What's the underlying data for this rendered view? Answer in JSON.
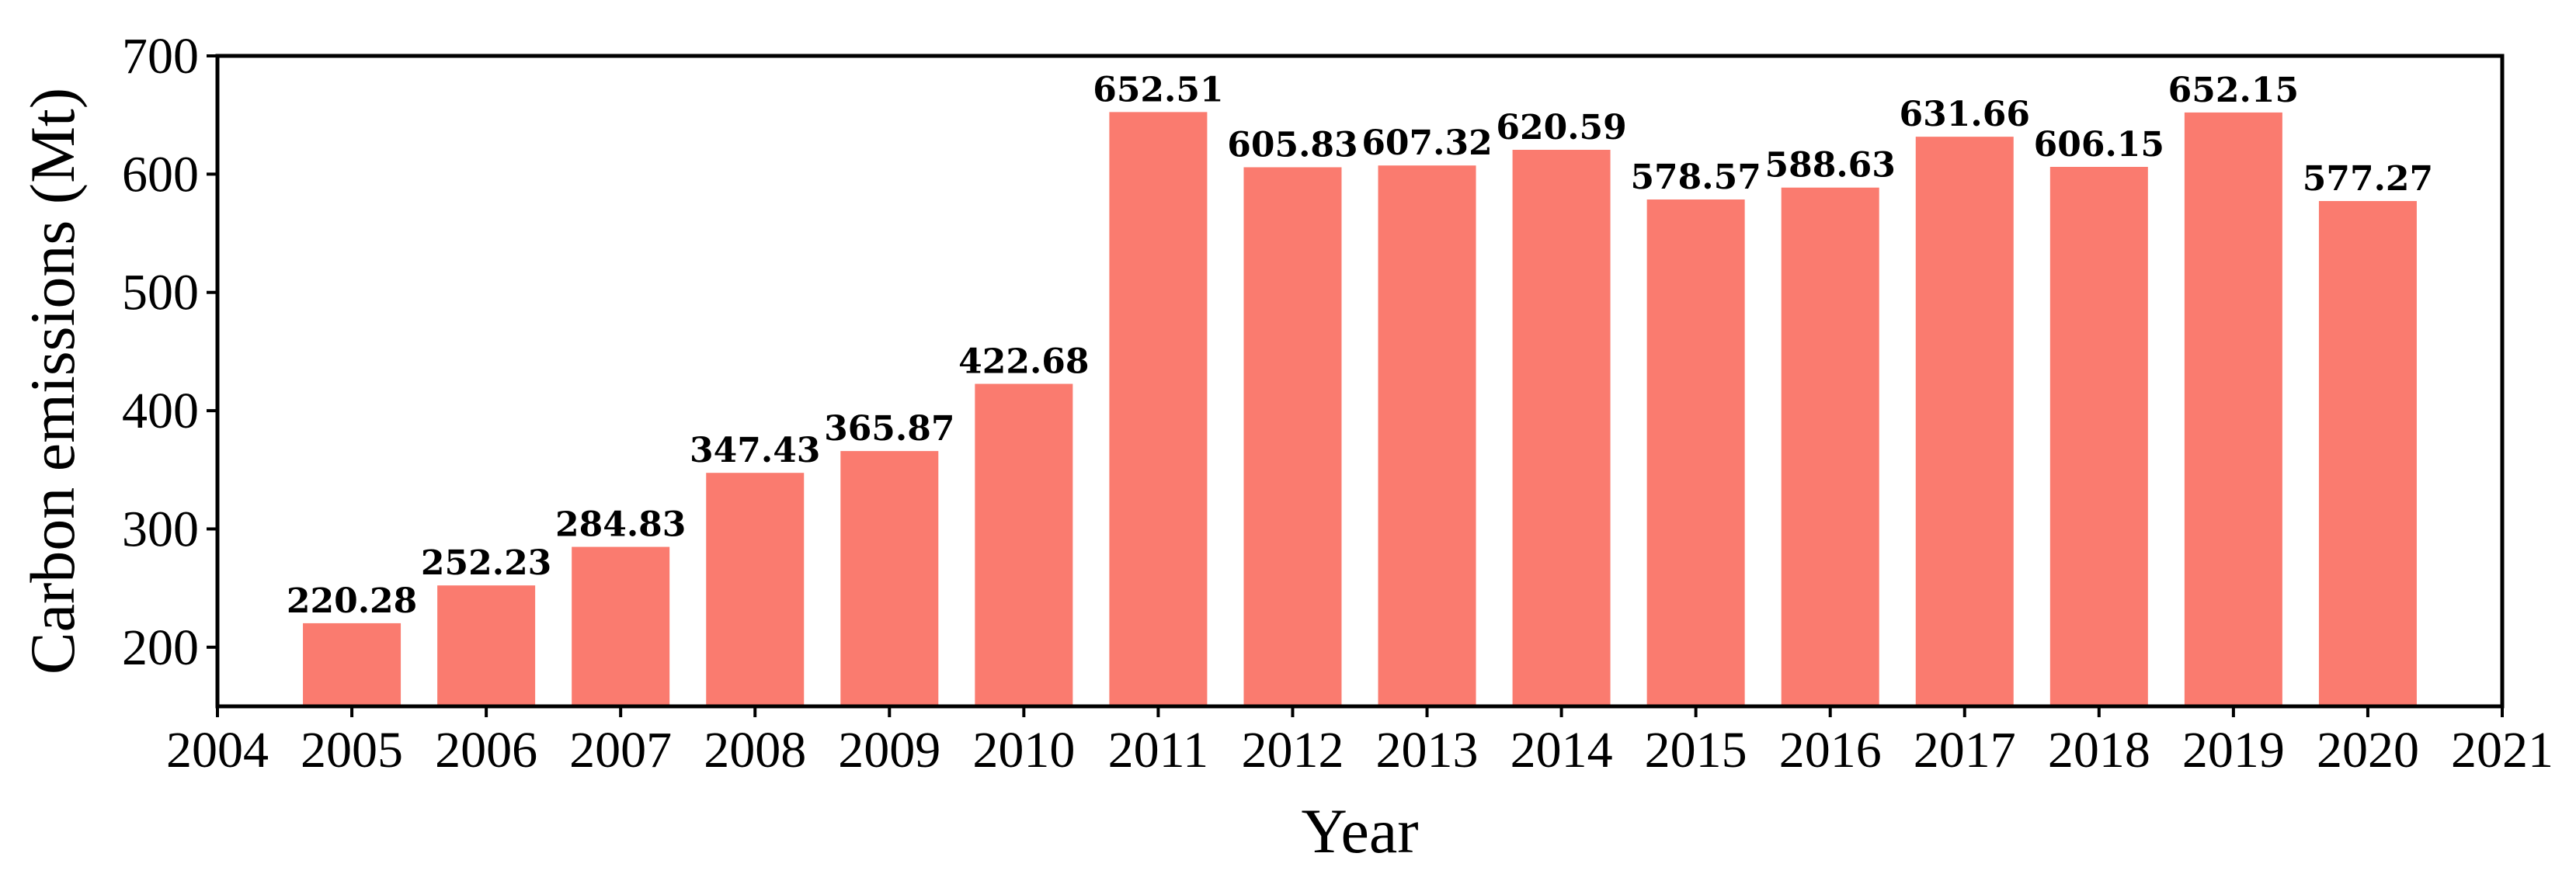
{
  "chart_data": {
    "type": "bar",
    "title": "",
    "xlabel": "Year",
    "ylabel": "Carbon emissions (Mt)",
    "categories": [
      "2005",
      "2006",
      "2007",
      "2008",
      "2009",
      "2010",
      "2011",
      "2012",
      "2013",
      "2014",
      "2015",
      "2016",
      "2017",
      "2018",
      "2019",
      "2020"
    ],
    "values": [
      220.28,
      252.23,
      284.83,
      347.43,
      365.87,
      422.68,
      652.51,
      605.83,
      607.32,
      620.59,
      578.57,
      588.63,
      631.66,
      606.15,
      652.15,
      577.27
    ],
    "data_labels": [
      "220.28",
      "252.23",
      "284.83",
      "347.43",
      "365.87",
      "422.68",
      "652.51",
      "605.83",
      "607.32",
      "620.59",
      "578.57",
      "588.63",
      "631.66",
      "606.15",
      "652.15",
      "577.27"
    ],
    "xlim": [
      2004,
      2021
    ],
    "x_ticks": [
      "2004",
      "2005",
      "2006",
      "2007",
      "2008",
      "2009",
      "2010",
      "2011",
      "2012",
      "2013",
      "2014",
      "2015",
      "2016",
      "2017",
      "2018",
      "2019",
      "2020",
      "2021"
    ],
    "ylim": [
      150,
      700
    ],
    "y_ticks": [
      "200",
      "300",
      "400",
      "500",
      "600",
      "700"
    ],
    "grid": false,
    "legend": "none",
    "colors": {
      "bar": "#fa7b6f",
      "axis": "#000000"
    }
  }
}
